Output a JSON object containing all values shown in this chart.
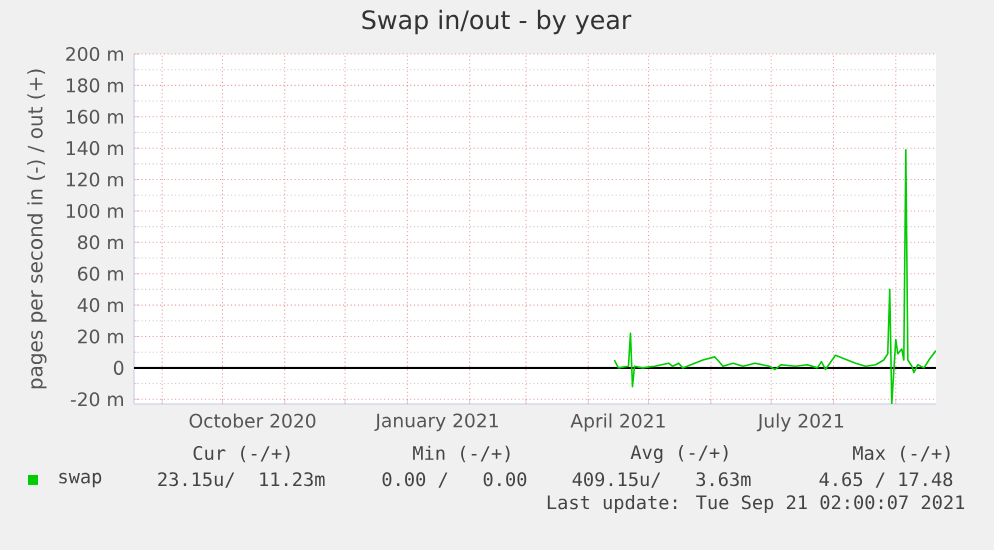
{
  "chart_data": {
    "type": "line",
    "title": "Swap in/out - by year",
    "ylabel": "pages per second in (-) / out (+)",
    "xlim": [
      "2020-08-18",
      "2021-09-21"
    ],
    "xticks": [
      {
        "value": "2020-09-01",
        "label": null
      },
      {
        "value": "2020-10-01",
        "label": null
      },
      {
        "value": "2020-11-01",
        "label": null
      },
      {
        "value": "2020-12-01",
        "label": null
      },
      {
        "value": "2021-01-01",
        "label": null
      },
      {
        "value": "2021-02-01",
        "label": null
      },
      {
        "value": "2021-03-01",
        "label": null
      },
      {
        "value": "2021-04-01",
        "label": null
      },
      {
        "value": "2021-05-01",
        "label": null
      },
      {
        "value": "2021-06-01",
        "label": null
      },
      {
        "value": "2021-07-01",
        "label": null
      },
      {
        "value": "2021-08-01",
        "label": null
      },
      {
        "value": "2021-09-01",
        "label": null
      },
      {
        "value": "2020-10-16",
        "label": "October 2020"
      },
      {
        "value": "2021-01-16",
        "label": "January 2021"
      },
      {
        "value": "2021-04-16",
        "label": "April 2021"
      },
      {
        "value": "2021-07-16",
        "label": "July 2021"
      }
    ],
    "ylim": [
      -23,
      200
    ],
    "yticks": [
      {
        "value": -20,
        "label": "-20 m"
      },
      0,
      {
        "value": 20,
        "label": "20 m"
      },
      {
        "value": 40,
        "label": "40 m"
      },
      {
        "value": 60,
        "label": "60 m"
      },
      {
        "value": 80,
        "label": "80 m"
      },
      {
        "value": 100,
        "label": "100 m"
      },
      {
        "value": 120,
        "label": "120 m"
      },
      {
        "value": 140,
        "label": "140 m"
      },
      {
        "value": 160,
        "label": "160 m"
      },
      {
        "value": 180,
        "label": "180 m"
      },
      {
        "value": 200,
        "label": "200 m"
      }
    ],
    "grid": true,
    "legend": "bottom left",
    "ref_lines": [
      {
        "axis": "y",
        "value": 0,
        "color": "#000000"
      }
    ],
    "series": [
      {
        "name": "swap",
        "color": "#00cc00",
        "x": [
          "2021-04-14",
          "2021-04-16",
          "2021-04-21",
          "2021-04-22",
          "2021-04-23",
          "2021-04-24",
          "2021-04-28",
          "2021-05-04",
          "2021-05-11",
          "2021-05-13",
          "2021-05-16",
          "2021-05-18",
          "2021-05-24",
          "2021-05-28",
          "2021-06-03",
          "2021-06-05",
          "2021-06-07",
          "2021-06-12",
          "2021-06-17",
          "2021-06-23",
          "2021-06-30",
          "2021-07-03",
          "2021-07-06",
          "2021-07-13",
          "2021-07-19",
          "2021-07-24",
          "2021-07-26",
          "2021-07-28",
          "2021-08-02",
          "2021-08-06",
          "2021-08-12",
          "2021-08-17",
          "2021-08-22",
          "2021-08-26",
          "2021-08-28",
          "2021-08-29",
          "2021-08-30",
          "2021-09-01",
          "2021-09-02",
          "2021-09-04",
          "2021-09-05",
          "2021-09-06",
          "2021-09-07",
          "2021-09-09",
          "2021-09-10",
          "2021-09-12",
          "2021-09-15",
          "2021-09-18",
          "2021-09-21"
        ],
        "values": [
          5,
          0,
          1,
          22,
          -12,
          1,
          0,
          1,
          3,
          1,
          3,
          0,
          3,
          5,
          7,
          4,
          1,
          3,
          1,
          3,
          1,
          -1,
          2,
          1,
          2,
          0,
          4,
          -1,
          8,
          6,
          3,
          1,
          2,
          5,
          9,
          50,
          -23,
          18,
          9,
          12,
          5,
          139,
          5,
          1,
          -3,
          2,
          0,
          6,
          11
        ]
      }
    ],
    "annotations": [
      "Cur (-/+)",
      "Min (-/+)",
      "Avg (-/+)",
      "Max (-/+)",
      "23.15u/  11.23m",
      "0.00 /   0.00",
      "409.15u/   3.63m",
      "4.65 / 17.48",
      "Last update: Tue Sep 21 02:00:07 2021"
    ]
  }
}
